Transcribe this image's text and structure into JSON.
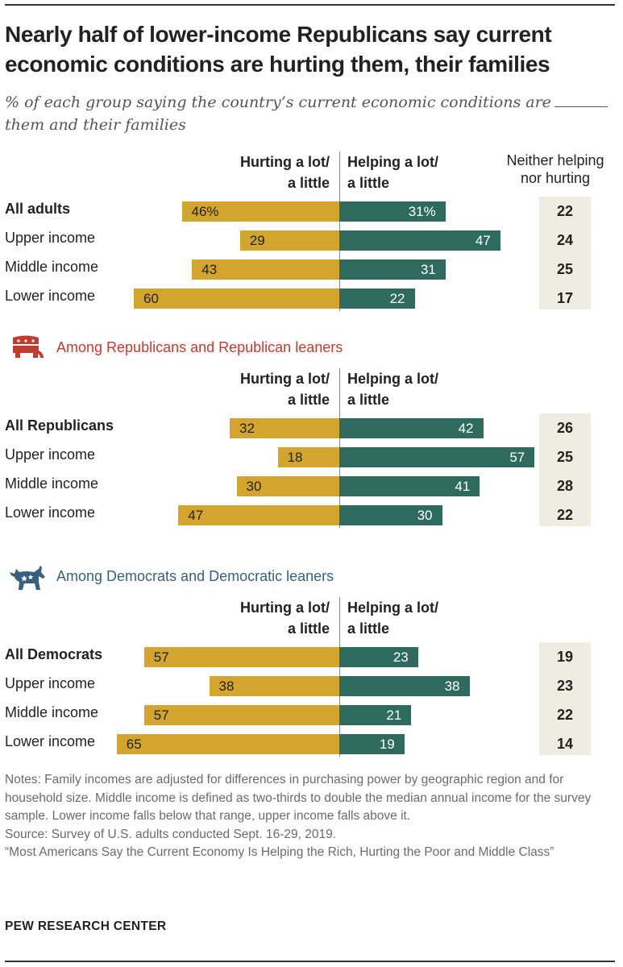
{
  "title": "Nearly half of lower-income Republicans say current economic conditions are hurting them, their families",
  "subtitle_part1": "% of each group saying the country’s current economic conditions are",
  "subtitle_part2": "them and their families",
  "headers": {
    "hurting_line1": "Hurting a lot/",
    "hurting_line2": "a little",
    "helping_line1": "Helping a lot/",
    "helping_line2": "a little",
    "neither_line1": "Neither helping",
    "neither_line2": "nor hurting"
  },
  "panels": {
    "republicans_label": "Among Republicans and Republican leaners",
    "democrats_label": "Among Democrats and Democratic leaners"
  },
  "colors": {
    "hurting": "#D3A52E",
    "helping": "#2E6B5E",
    "neither_bg": "#EDEDE1",
    "republican": "#C23B2E",
    "democrat": "#37607F"
  },
  "chart_data": [
    {
      "type": "bar",
      "orientation": "diverging",
      "group": "All adults",
      "categories": [
        "All adults",
        "Upper income",
        "Middle income",
        "Lower income"
      ],
      "series": [
        {
          "name": "Hurting a lot/a little",
          "values": [
            46,
            29,
            43,
            60
          ]
        },
        {
          "name": "Helping a lot/a little",
          "values": [
            31,
            47,
            31,
            22
          ]
        },
        {
          "name": "Neither helping nor hurting",
          "values": [
            22,
            24,
            25,
            17
          ]
        }
      ],
      "value_labels": {
        "hurting": [
          "46%",
          "29",
          "43",
          "60"
        ],
        "helping": [
          "31%",
          "47",
          "31",
          "22"
        ],
        "neither": [
          "22",
          "24",
          "25",
          "17"
        ]
      }
    },
    {
      "type": "bar",
      "orientation": "diverging",
      "group": "Among Republicans and Republican leaners",
      "categories": [
        "All Republicans",
        "Upper income",
        "Middle income",
        "Lower income"
      ],
      "series": [
        {
          "name": "Hurting a lot/a little",
          "values": [
            32,
            18,
            30,
            47
          ]
        },
        {
          "name": "Helping a lot/a little",
          "values": [
            42,
            57,
            41,
            30
          ]
        },
        {
          "name": "Neither helping nor hurting",
          "values": [
            26,
            25,
            28,
            22
          ]
        }
      ],
      "value_labels": {
        "hurting": [
          "32",
          "18",
          "30",
          "47"
        ],
        "helping": [
          "42",
          "57",
          "41",
          "30"
        ],
        "neither": [
          "26",
          "25",
          "28",
          "22"
        ]
      }
    },
    {
      "type": "bar",
      "orientation": "diverging",
      "group": "Among Democrats and Democratic leaners",
      "categories": [
        "All Democrats",
        "Upper income",
        "Middle income",
        "Lower income"
      ],
      "series": [
        {
          "name": "Hurting a lot/a little",
          "values": [
            57,
            38,
            57,
            65
          ]
        },
        {
          "name": "Helping a lot/a little",
          "values": [
            23,
            38,
            21,
            19
          ]
        },
        {
          "name": "Neither helping nor hurting",
          "values": [
            19,
            23,
            22,
            14
          ]
        }
      ],
      "value_labels": {
        "hurting": [
          "57",
          "38",
          "57",
          "65"
        ],
        "helping": [
          "23",
          "38",
          "21",
          "19"
        ],
        "neither": [
          "19",
          "23",
          "22",
          "14"
        ]
      }
    }
  ],
  "notes": {
    "note": "Notes:  Family incomes are adjusted for differences in purchasing power by geographic region and for household size. Middle income is defined as two-thirds to double the median annual income for the survey sample. Lower income falls below that range, upper income falls above it.",
    "source": "Source: Survey of U.S. adults conducted Sept. 16-29, 2019.",
    "report": "“Most Americans Say the Current Economy Is Helping the Rich, Hurting the Poor and Middle Class”"
  },
  "brand": "PEW RESEARCH CENTER"
}
